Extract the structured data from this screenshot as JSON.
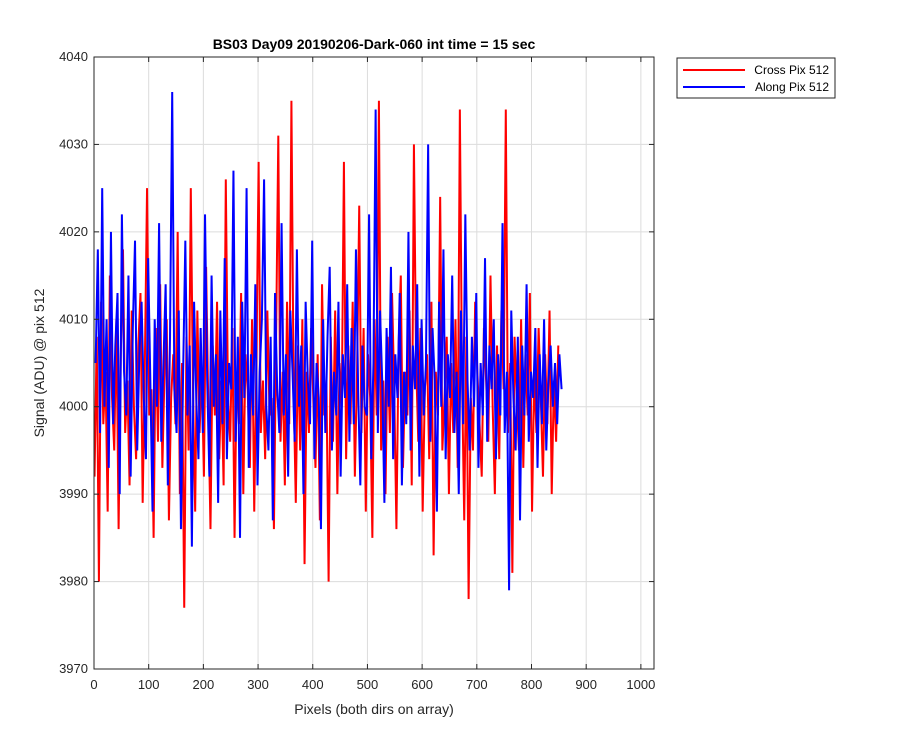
{
  "chart_data": {
    "type": "line",
    "title": "BS03 Day09 20190206-Dark-060 int time = 15 sec",
    "xlabel": "Pixels (both dirs on array)",
    "ylabel": "Signal (ADU) @ pix 512",
    "xlim": [
      0,
      1024
    ],
    "ylim": [
      3970,
      4040
    ],
    "xticks": [
      0,
      100,
      200,
      300,
      400,
      500,
      600,
      700,
      800,
      900,
      1000
    ],
    "yticks": [
      3970,
      3980,
      3990,
      4000,
      4010,
      4020,
      4030,
      4040
    ],
    "grid": true,
    "legend_position": "outside-top-right",
    "series": [
      {
        "name": "Cross Pix 512",
        "color": "#ff0000",
        "x_start": 1,
        "x_step": 4,
        "values": [
          3992,
          4008,
          3980,
          4012,
          3998,
          4004,
          3988,
          4015,
          4001,
          3995,
          4010,
          3986,
          4006,
          4018,
          3997,
          4003,
          3991,
          4011,
          4000,
          3994,
          4007,
          4013,
          3989,
          4005,
          4025,
          3999,
          4002,
          3985,
          4009,
          3996,
          4014,
          3993,
          4004,
          4010,
          3987,
          4001,
          4006,
          3998,
          4020,
          3990,
          4005,
          3977,
          4008,
          3995,
          4025,
          4002,
          3988,
          4011,
          3997,
          4004,
          3992,
          4016,
          4000,
          3986,
          4007,
          3999,
          4012,
          3994,
          4003,
          3991,
          4026,
          4001,
          3996,
          4009,
          3985,
          4004,
          3998,
          4013,
          3990,
          4006,
          4002,
          3993,
          4010,
          3988,
          4005,
          4028,
          3997,
          4003,
          3994,
          4011,
          3999,
          4001,
          3986,
          4008,
          4031,
          3996,
          4004,
          3991,
          4012,
          3998,
          4035,
          4002,
          3989,
          4007,
          3995,
          4010,
          3982,
          4004,
          3997,
          4009,
          4001,
          3993,
          4006,
          3987,
          4014,
          3999,
          4003,
          3980,
          4008,
          3996,
          4011,
          3990,
          4005,
          4000,
          4028,
          3994,
          4007,
          3998,
          4012,
          3992,
          4004,
          4023,
          3997,
          4009,
          3988,
          4006,
          4001,
          3985,
          4010,
          3999,
          4035,
          3995,
          4003,
          3990,
          4008,
          3997,
          4013,
          4002,
          3986,
          4007,
          4015,
          3993,
          4004,
          3999,
          4011,
          3991,
          4030,
          4005,
          3996,
          4009,
          3988,
          4002,
          4006,
          3994,
          4012,
          3983,
          4004,
          3999,
          4024,
          3995,
          4001,
          4008,
          3990,
          4005,
          3997,
          4010,
          3993,
          4034,
          4003,
          3987,
          4008,
          3978,
          4001,
          3995,
          4012,
          4004,
          3998,
          3992,
          4009,
          4003,
          3996,
          4015,
          4000,
          3990,
          4007,
          3994,
          4011,
          4002,
          4034,
          3997,
          4005,
          3981,
          4008,
          4001,
          3995,
          4010,
          3993,
          4006,
          3999,
          4013,
          3988,
          4004,
          3997,
          4009,
          4001,
          3992,
          4006,
          3998,
          4011,
          3990,
          4003,
          3996,
          4007
        ]
      },
      {
        "name": "Along Pix 512",
        "color": "#0000ff",
        "x_start": 3,
        "x_step": 4,
        "values": [
          4005,
          4018,
          3997,
          4025,
          4000,
          4010,
          3993,
          4020,
          3998,
          4007,
          4013,
          3990,
          4022,
          4004,
          3999,
          4015,
          3992,
          4009,
          4019,
          3995,
          4006,
          4012,
          4001,
          3994,
          4017,
          4003,
          3988,
          4010,
          4000,
          4021,
          3996,
          4005,
          4014,
          3991,
          4008,
          4036,
          4002,
          3997,
          4011,
          3986,
          4004,
          4019,
          3999,
          4007,
          3984,
          4012,
          4001,
          3994,
          4009,
          3997,
          4022,
          4003,
          3992,
          4015,
          4000,
          4006,
          3989,
          4011,
          3998,
          4017,
          3994,
          4005,
          4002,
          4027,
          3996,
          4008,
          3985,
          4012,
          4001,
          4025,
          3993,
          4006,
          3999,
          4014,
          3991,
          4004,
          4010,
          4026,
          4000,
          3995,
          4008,
          3987,
          4013,
          4002,
          3997,
          4021,
          3999,
          4006,
          3992,
          4011,
          4004,
          3996,
          4018,
          4000,
          4007,
          3990,
          4012,
          4003,
          3998,
          4019,
          3994,
          4005,
          4001,
          3986,
          4010,
          3997,
          4008,
          4016,
          3995,
          4004,
          3999,
          4012,
          3992,
          4006,
          4001,
          4014,
          3996,
          4009,
          3998,
          4018,
          4002,
          3991,
          4007,
          4000,
          3999,
          4022,
          3994,
          4005,
          4034,
          3997,
          4011,
          4003,
          3989,
          4009,
          4000,
          4016,
          3994,
          4006,
          4001,
          4013,
          3991,
          4004,
          3998,
          4020,
          3995,
          4007,
          4002,
          4014,
          3992,
          4010,
          3999,
          4005,
          4030,
          3996,
          4009,
          4003,
          3988,
          4012,
          4000,
          4018,
          3994,
          4006,
          4001,
          4015,
          3997,
          4004,
          3990,
          4011,
          3998,
          4022,
          4003,
          3995,
          4008,
          4000,
          4013,
          3993,
          4005,
          3999,
          4017,
          3996,
          4007,
          4002,
          4010,
          3994,
          4006,
          3999,
          4021,
          3997,
          4004,
          3979,
          4011,
          4001,
          3995,
          4008,
          3987,
          4007,
          3999,
          4014,
          3996,
          4004,
          4001,
          4009,
          3993,
          4006,
          3998,
          4010,
          3995,
          4003,
          4007,
          4000,
          4005,
          3998,
          4006,
          4002
        ]
      }
    ]
  }
}
